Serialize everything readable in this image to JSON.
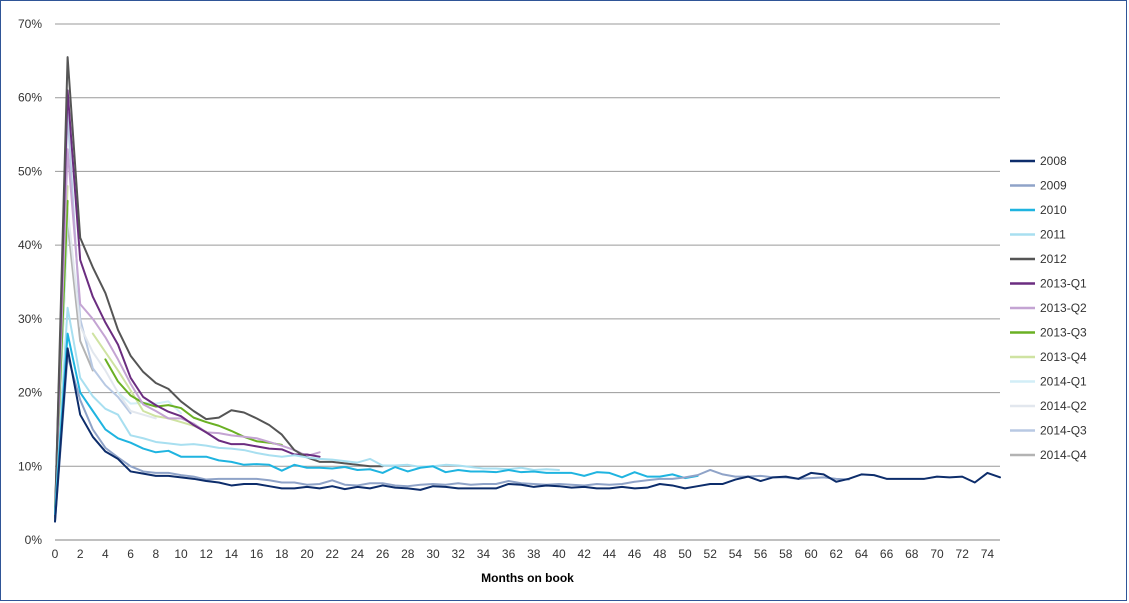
{
  "chart_data": {
    "type": "line",
    "xlabel": "Months on book",
    "ylabel": "",
    "xlim": [
      0,
      75
    ],
    "ylim": [
      0,
      70
    ],
    "y_ticks": [
      "0%",
      "10%",
      "20%",
      "30%",
      "40%",
      "50%",
      "60%",
      "70%"
    ],
    "x_ticks": [
      "0",
      "2",
      "4",
      "6",
      "8",
      "10",
      "12",
      "14",
      "16",
      "18",
      "20",
      "22",
      "24",
      "26",
      "28",
      "30",
      "32",
      "34",
      "36",
      "38",
      "40",
      "42",
      "44",
      "46",
      "48",
      "50",
      "52",
      "54",
      "56",
      "58",
      "60",
      "62",
      "64",
      "66",
      "68",
      "70",
      "72",
      "74"
    ],
    "grid": "horizontal",
    "legend_position": "right",
    "series": [
      {
        "name": "2008",
        "color": "#0d2d6b",
        "x0": 0,
        "values": [
          2.5,
          26,
          17,
          14,
          12,
          11,
          9.3,
          9,
          8.7,
          8.7,
          8.5,
          8.3,
          8,
          7.8,
          7.4,
          7.6,
          7.6,
          7.3,
          7,
          7,
          7.2,
          7,
          7.3,
          6.9,
          7.2,
          7,
          7.4,
          7.1,
          7,
          6.8,
          7.3,
          7.2,
          7,
          7,
          7,
          7,
          7.6,
          7.5,
          7.2,
          7.4,
          7.3,
          7.1,
          7.2,
          7,
          7,
          7.2,
          7,
          7.1,
          7.6,
          7.4,
          7,
          7.3,
          7.6,
          7.6,
          8.2,
          8.6,
          8,
          8.5,
          8.6,
          8.3,
          9.1,
          8.9,
          7.9,
          8.3,
          8.9,
          8.8,
          8.3,
          8.3,
          8.3,
          8.3,
          8.6,
          8.5,
          8.6,
          7.8,
          9.1,
          8.5
        ]
      },
      {
        "name": "2009",
        "color": "#8fa3c8",
        "x0": 0,
        "values": [
          2.5,
          25,
          19,
          15,
          12.5,
          11.2,
          10,
          9.3,
          9.1,
          9.1,
          8.8,
          8.6,
          8.2,
          8.3,
          8.3,
          8.3,
          8.3,
          8.1,
          7.8,
          7.8,
          7.5,
          7.6,
          8.1,
          7.5,
          7.4,
          7.7,
          7.7,
          7.4,
          7.3,
          7.5,
          7.6,
          7.5,
          7.7,
          7.5,
          7.6,
          7.6,
          8,
          7.7,
          7.6,
          7.5,
          7.6,
          7.5,
          7.4,
          7.6,
          7.5,
          7.6,
          7.9,
          8.1,
          8.3,
          8.3,
          8.5,
          8.8,
          9.5,
          8.9,
          8.6,
          8.6,
          8.7,
          8.5,
          8.5,
          8.3,
          8.4,
          8.5,
          8.3,
          8.2
        ]
      },
      {
        "name": "2010",
        "color": "#1fb4e0",
        "x0": 0,
        "values": [
          3.5,
          28,
          20,
          17.5,
          15,
          13.8,
          13.2,
          12.4,
          11.9,
          12.1,
          11.3,
          11.3,
          11.3,
          10.8,
          10.6,
          10.2,
          10.3,
          10.2,
          9.4,
          10.2,
          9.8,
          9.8,
          9.7,
          9.9,
          9.5,
          9.6,
          9.1,
          9.9,
          9.3,
          9.8,
          10,
          9.2,
          9.5,
          9.3,
          9.3,
          9.2,
          9.5,
          9.2,
          9.3,
          9.1,
          9.1,
          9.1,
          8.7,
          9.2,
          9.1,
          8.5,
          9.2,
          8.6,
          8.6,
          8.9,
          8.4,
          8.7
        ]
      },
      {
        "name": "2011",
        "color": "#a8dff0",
        "x0": 0,
        "values": [
          3.5,
          31.5,
          22,
          19.5,
          17.8,
          17,
          14.2,
          13.8,
          13.3,
          13.1,
          12.9,
          13,
          12.8,
          12.5,
          12.4,
          12.2,
          11.8,
          11.5,
          11.3,
          11.5,
          11.2,
          11,
          10.9,
          10.7,
          10.5,
          11,
          10.1,
          10.1,
          10.2,
          9.9,
          10,
          10.2,
          10.1,
          9.9,
          9.7,
          9.7,
          9.6,
          9.8,
          9.5,
          9.6,
          9.5
        ]
      },
      {
        "name": "2012",
        "color": "#555555",
        "x0": 0,
        "values": [
          3,
          65.5,
          41,
          37,
          33.5,
          28.5,
          25,
          22.8,
          21.3,
          20.5,
          18.8,
          17.5,
          16.4,
          16.6,
          17.6,
          17.3,
          16.5,
          15.6,
          14.3,
          12.2,
          11.2,
          10.6,
          10.6,
          10.4,
          10.2,
          10,
          10
        ]
      },
      {
        "name": "2013-Q1",
        "color": "#6b2d80",
        "x0": 0,
        "values": [
          3,
          61,
          38,
          33,
          29.5,
          26.5,
          22,
          19.4,
          18.3,
          17.4,
          16.8,
          15.6,
          14.6,
          13.5,
          13,
          13,
          12.7,
          12.4,
          12.3,
          11.6,
          11.6,
          11.3
        ]
      },
      {
        "name": "2013-Q2",
        "color": "#c4a4d3",
        "x0": 0,
        "values": [
          3,
          53,
          32,
          30,
          27.5,
          24.5,
          21.2,
          18.4,
          17.5,
          16.5,
          16.5,
          15.8,
          14.6,
          14.5,
          14.2,
          14,
          13.8,
          13.3,
          12.8,
          12.2,
          11.4,
          11.9
        ]
      },
      {
        "name": "2013-Q3",
        "color": "#6ab023",
        "x0": 0,
        "values": [
          4,
          46,
          null,
          null,
          24.5,
          21.5,
          19.6,
          18.6,
          18.1,
          18.3,
          17.9,
          16.6,
          16,
          15.5,
          14.8,
          14,
          13.4,
          13.2,
          12.9
        ]
      },
      {
        "name": "2013-Q4",
        "color": "#cfe3a2",
        "x0": 0,
        "values": [
          4,
          48,
          null,
          28,
          25.5,
          23,
          20.3,
          17.5,
          16.8,
          16.5,
          16,
          15.5,
          14.7
        ]
      },
      {
        "name": "2014-Q1",
        "color": "#d2eef7",
        "x0": 0,
        "values": [
          4,
          43,
          null,
          null,
          null,
          20,
          18.5,
          18.6,
          18.5,
          18.8,
          17.2
        ]
      },
      {
        "name": "2014-Q2",
        "color": "#e2e7ee",
        "x0": 0,
        "values": [
          4,
          45,
          29,
          25.5,
          23,
          20,
          17.5,
          17,
          16.5
        ]
      },
      {
        "name": "2014-Q3",
        "color": "#b8c9e3",
        "x0": 0,
        "values": [
          4,
          58,
          30,
          23.3,
          21,
          19.4,
          17.2
        ]
      },
      {
        "name": "2014-Q4",
        "color": "#b3b3b3",
        "x0": 0,
        "values": [
          4,
          43,
          27,
          23
        ]
      }
    ]
  }
}
